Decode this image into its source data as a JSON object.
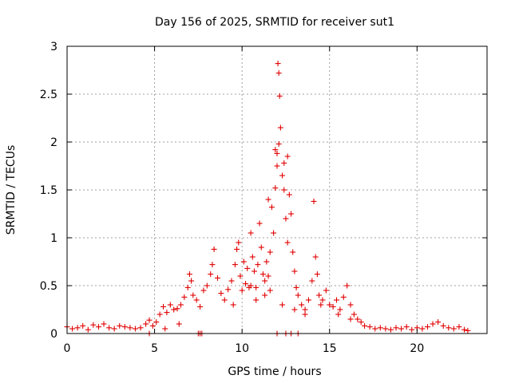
{
  "chart_data": {
    "type": "scatter",
    "title": "Day 156 of 2025, SRMTID for receiver sut1",
    "xlabel": "GPS time / hours",
    "ylabel": "SRMTID / TECUs",
    "xlim": [
      0,
      24
    ],
    "ylim": [
      0,
      3
    ],
    "xticks": [
      "0",
      "5",
      "10",
      "15",
      "20"
    ],
    "yticks": [
      "0",
      "0.5",
      "1",
      "1.5",
      "2",
      "2.5",
      "3"
    ],
    "grid": true,
    "marker": "+",
    "color": "#e00000",
    "series": [
      {
        "name": "sut1",
        "x": [
          0.0,
          0.3,
          0.6,
          0.9,
          1.2,
          1.5,
          1.8,
          2.1,
          2.4,
          2.7,
          3.0,
          3.3,
          3.6,
          3.9,
          4.2,
          4.5,
          4.7,
          4.9,
          5.1,
          5.3,
          5.5,
          5.7,
          5.9,
          6.1,
          6.3,
          6.5,
          6.7,
          6.9,
          7.0,
          7.1,
          7.2,
          7.4,
          7.6,
          7.8,
          8.0,
          8.2,
          8.3,
          8.4,
          8.6,
          8.8,
          9.0,
          9.2,
          9.4,
          9.6,
          9.7,
          9.8,
          9.9,
          10.0,
          10.1,
          10.2,
          10.3,
          10.4,
          10.5,
          10.6,
          10.7,
          10.8,
          10.9,
          11.0,
          11.1,
          11.2,
          11.3,
          11.4,
          11.5,
          11.6,
          11.7,
          11.8,
          11.9,
          12.0,
          12.05,
          12.1,
          12.15,
          12.2,
          12.3,
          12.4,
          12.5,
          12.6,
          12.7,
          12.8,
          12.9,
          13.0,
          13.1,
          13.2,
          13.4,
          13.6,
          13.8,
          14.0,
          14.1,
          14.2,
          14.3,
          14.4,
          14.6,
          14.8,
          15.0,
          15.2,
          15.4,
          15.6,
          15.8,
          16.0,
          16.2,
          16.4,
          16.6,
          16.8,
          17.0,
          17.3,
          17.6,
          17.9,
          18.2,
          18.5,
          18.8,
          19.1,
          19.4,
          19.7,
          20.0,
          20.3,
          20.6,
          20.9,
          21.2,
          21.5,
          21.8,
          22.1,
          22.4,
          22.7,
          22.9,
          7.5,
          7.6,
          7.7,
          12.0,
          12.5,
          12.8,
          13.2,
          4.7,
          5.6,
          6.4,
          9.5,
          10.5,
          10.8,
          11.3,
          11.6,
          12.3,
          13.0,
          13.6,
          14.5,
          15.5,
          16.2,
          11.9,
          12.1,
          12.0,
          12.4,
          12.6,
          11.5
        ],
        "y": [
          0.07,
          0.05,
          0.06,
          0.08,
          0.04,
          0.09,
          0.07,
          0.1,
          0.06,
          0.05,
          0.08,
          0.07,
          0.06,
          0.05,
          0.06,
          0.1,
          0.14,
          0.08,
          0.12,
          0.2,
          0.28,
          0.22,
          0.3,
          0.25,
          0.26,
          0.3,
          0.38,
          0.48,
          0.62,
          0.55,
          0.4,
          0.35,
          0.28,
          0.45,
          0.5,
          0.62,
          0.72,
          0.88,
          0.58,
          0.42,
          0.35,
          0.46,
          0.55,
          0.72,
          0.88,
          0.95,
          0.6,
          0.45,
          0.75,
          0.52,
          0.68,
          0.48,
          1.05,
          0.8,
          0.65,
          0.48,
          0.72,
          1.15,
          0.9,
          0.62,
          0.55,
          0.75,
          0.6,
          0.85,
          1.32,
          1.05,
          1.52,
          1.75,
          2.82,
          2.72,
          2.48,
          2.15,
          1.65,
          1.5,
          1.2,
          0.95,
          1.45,
          1.25,
          0.85,
          0.65,
          0.48,
          0.4,
          0.3,
          0.25,
          0.35,
          0.55,
          1.38,
          0.8,
          0.62,
          0.4,
          0.35,
          0.45,
          0.3,
          0.28,
          0.35,
          0.25,
          0.38,
          0.5,
          0.3,
          0.2,
          0.15,
          0.12,
          0.08,
          0.07,
          0.05,
          0.06,
          0.05,
          0.04,
          0.06,
          0.05,
          0.07,
          0.04,
          0.06,
          0.05,
          0.07,
          0.1,
          0.12,
          0.08,
          0.06,
          0.05,
          0.07,
          0.04,
          0.03,
          0.0,
          0.0,
          0.0,
          0.0,
          0.0,
          0.0,
          0.0,
          0.0,
          0.05,
          0.1,
          0.3,
          0.5,
          0.35,
          0.4,
          0.45,
          0.3,
          0.25,
          0.2,
          0.3,
          0.2,
          0.15,
          1.92,
          1.98,
          1.88,
          1.78,
          1.85,
          1.4
        ]
      }
    ]
  }
}
